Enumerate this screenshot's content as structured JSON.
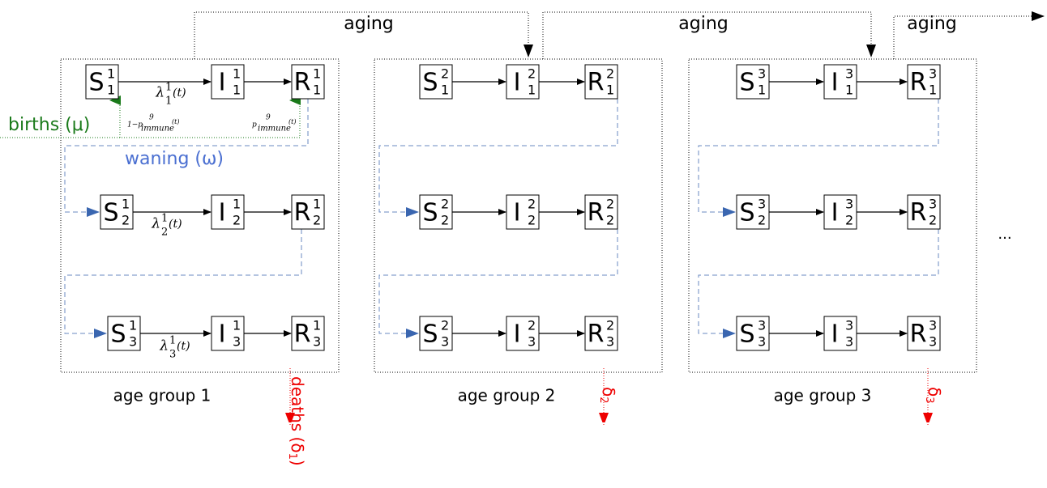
{
  "aging": [
    "aging",
    "aging",
    "aging"
  ],
  "births": "births (μ)",
  "waning": "waning (ω)",
  "ellipsis": "...",
  "groups": [
    {
      "label": "age group 1",
      "death": "deaths (δ",
      "death_sub": "1",
      "death_close": ")"
    },
    {
      "label": "age group 2",
      "death": "δ",
      "death_sub": "2"
    },
    {
      "label": "age group 3",
      "death": "δ",
      "death_sub": "3"
    }
  ],
  "nodes": [
    {
      "letter": "S",
      "sup": "1",
      "sub": "1"
    },
    {
      "letter": "I",
      "sup": "1",
      "sub": "1"
    },
    {
      "letter": "R",
      "sup": "1",
      "sub": "1"
    },
    {
      "letter": "S",
      "sup": "1",
      "sub": "2"
    },
    {
      "letter": "I",
      "sup": "1",
      "sub": "2"
    },
    {
      "letter": "R",
      "sup": "1",
      "sub": "2"
    },
    {
      "letter": "S",
      "sup": "1",
      "sub": "3"
    },
    {
      "letter": "I",
      "sup": "1",
      "sub": "3"
    },
    {
      "letter": "R",
      "sup": "1",
      "sub": "3"
    },
    {
      "letter": "S",
      "sup": "2",
      "sub": "1"
    },
    {
      "letter": "I",
      "sup": "2",
      "sub": "1"
    },
    {
      "letter": "R",
      "sup": "2",
      "sub": "1"
    },
    {
      "letter": "S",
      "sup": "2",
      "sub": "2"
    },
    {
      "letter": "I",
      "sup": "2",
      "sub": "2"
    },
    {
      "letter": "R",
      "sup": "2",
      "sub": "2"
    },
    {
      "letter": "S",
      "sup": "2",
      "sub": "3"
    },
    {
      "letter": "I",
      "sup": "2",
      "sub": "3"
    },
    {
      "letter": "R",
      "sup": "2",
      "sub": "3"
    },
    {
      "letter": "S",
      "sup": "3",
      "sub": "1"
    },
    {
      "letter": "I",
      "sup": "3",
      "sub": "1"
    },
    {
      "letter": "R",
      "sup": "3",
      "sub": "1"
    },
    {
      "letter": "S",
      "sup": "3",
      "sub": "2"
    },
    {
      "letter": "I",
      "sup": "3",
      "sub": "2"
    },
    {
      "letter": "R",
      "sup": "3",
      "sub": "2"
    },
    {
      "letter": "S",
      "sup": "3",
      "sub": "3"
    },
    {
      "letter": "I",
      "sup": "3",
      "sub": "3"
    },
    {
      "letter": "R",
      "sup": "3",
      "sub": "3"
    }
  ],
  "rates": [
    {
      "lambda": "λ",
      "sup": "1",
      "sub": "1",
      "arg": "(t)"
    },
    {
      "lambda": "λ",
      "sup": "1",
      "sub": "2",
      "arg": "(t)"
    },
    {
      "lambda": "λ",
      "sup": "1",
      "sub": "3",
      "arg": "(t)"
    }
  ],
  "immune": [
    {
      "prefix": "1−p",
      "sup": "9",
      "sub": "immune",
      "arg": "(t)"
    },
    {
      "prefix": "p",
      "sup": "9",
      "sub": "immune",
      "arg": "(t)"
    }
  ]
}
